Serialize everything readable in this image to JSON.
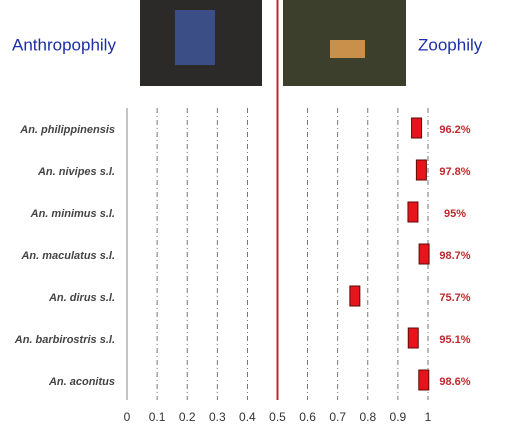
{
  "chart_data": {
    "type": "dot",
    "annotations": [
      "Anthropophily",
      "Zoophily"
    ],
    "categories": [
      "An. philippinensis",
      "An. nivipes s.l.",
      "An. minimus s.l.",
      "An. maculatus s.l.",
      "An. dirus s.l.",
      "An. barbirostris s.l.",
      "An. aconitus"
    ],
    "values": [
      0.962,
      0.978,
      0.95,
      0.987,
      0.757,
      0.951,
      0.986
    ],
    "value_labels": [
      "96.2%",
      "97.8%",
      "95%",
      "98.7%",
      "75.7%",
      "95.1%",
      "98.6%"
    ],
    "color": "#e8141c",
    "xlim": [
      0,
      1
    ],
    "xticks": [
      0,
      0.1,
      0.2,
      0.3,
      0.4,
      0.5,
      0.6,
      0.7,
      0.8,
      0.9,
      1
    ],
    "grid": true,
    "reference_line": 0.5,
    "reference_color": "#c0282d"
  }
}
